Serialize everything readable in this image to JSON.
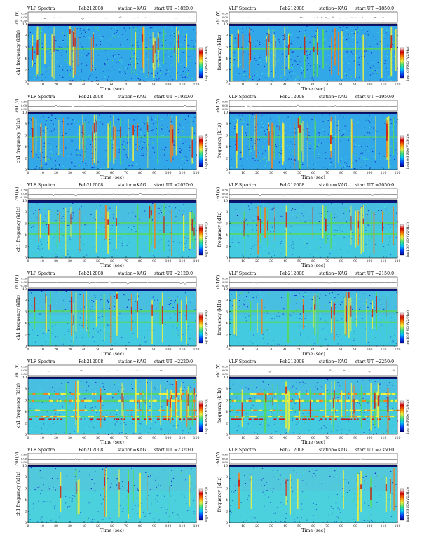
{
  "page": {
    "grid": {
      "rows": 6,
      "cols": 2
    }
  },
  "colors": {
    "background_blue": "#33a8e8",
    "dark_blue": "#1530c8",
    "cyan": "#40e0e0",
    "green": "#58d858",
    "yellow": "#f0f040",
    "orange": "#f08020",
    "red": "#c81818",
    "deep_navy": "#0a1478"
  },
  "colorbar": {
    "stops": [
      "#000080",
      "#0040ff",
      "#00c0ff",
      "#40e080",
      "#f0f040",
      "#ff8000",
      "#d00000",
      "#ffffff"
    ],
    "label": "log$_{10}$(PSD/(V$^2$/Hz))"
  },
  "chart_data": [
    {
      "type": "heatmap",
      "program": "VLF Spectra",
      "date": "Feb212008",
      "station": "station=KAG",
      "start": "start UT =1820:0",
      "ylabel_top": "ch1(V)",
      "ylabel_bottom": "ch1 frequency (kHz)",
      "xlabel": "Time (sec)",
      "xlim": [
        0,
        120
      ],
      "ylim": [
        0,
        10
      ],
      "xticks": [
        "0",
        "10",
        "20",
        "30",
        "40",
        "50",
        "60",
        "70",
        "80",
        "90",
        "100",
        "110",
        "120"
      ],
      "yticks": [
        "0",
        "2",
        "4",
        "6",
        "8",
        "10"
      ],
      "top_yticks": [
        "0.30",
        "0.00",
        "-0.30"
      ],
      "activity": "high"
    },
    {
      "type": "heatmap",
      "program": "VLF Spectra",
      "date": "Feb212008",
      "station": "station=KAG",
      "start": "start UT =1850:0",
      "ylabel_top": "ch1(V)",
      "ylabel_bottom": "frequency (kHz)",
      "xlabel": "Time (sec)",
      "xlim": [
        0,
        120
      ],
      "ylim": [
        0,
        10
      ],
      "xticks": [
        "0",
        "10",
        "20",
        "30",
        "40",
        "50",
        "60",
        "70",
        "80",
        "90",
        "100",
        "110",
        "120"
      ],
      "yticks": [
        "0",
        "2",
        "4",
        "6",
        "8",
        "10"
      ],
      "top_yticks": [
        "0.30",
        "0.00",
        "-0.30"
      ],
      "activity": "high"
    },
    {
      "type": "heatmap",
      "program": "VLF Spectra",
      "date": "Feb212008",
      "station": "station=KAG",
      "start": "start UT =1920:0",
      "ylabel_top": "ch1(V)",
      "ylabel_bottom": "ch1 frequency (kHz)",
      "xlabel": "Time (sec)",
      "xlim": [
        0,
        120
      ],
      "ylim": [
        0,
        10
      ],
      "xticks": [
        "0",
        "10",
        "20",
        "30",
        "40",
        "50",
        "60",
        "70",
        "80",
        "90",
        "100",
        "110",
        "120"
      ],
      "yticks": [
        "0",
        "2",
        "4",
        "6",
        "8",
        "10"
      ],
      "top_yticks": [
        "0.30",
        "0.00",
        "-0.30"
      ],
      "activity": "high"
    },
    {
      "type": "heatmap",
      "program": "VLF Spectra",
      "date": "Feb212008",
      "station": "station=KAG",
      "start": "start UT =1950:0",
      "ylabel_top": "ch1(V)",
      "ylabel_bottom": "frequency (kHz)",
      "xlabel": "Time (sec)",
      "xlim": [
        0,
        120
      ],
      "ylim": [
        0,
        10
      ],
      "xticks": [
        "0",
        "10",
        "20",
        "30",
        "40",
        "50",
        "60",
        "70",
        "80",
        "90",
        "100",
        "110",
        "120"
      ],
      "yticks": [
        "0",
        "2",
        "4",
        "6",
        "8",
        "10"
      ],
      "top_yticks": [
        "0.30",
        "0.00",
        "-0.30"
      ],
      "activity": "high"
    },
    {
      "type": "heatmap",
      "program": "VLF Spectra",
      "date": "Feb212008",
      "station": "station=KAG",
      "start": "start UT =2020:0",
      "ylabel_top": "ch1(V)",
      "ylabel_bottom": "ch1 frequency (kHz)",
      "xlabel": "Time (sec)",
      "xlim": [
        0,
        120
      ],
      "ylim": [
        0,
        10
      ],
      "xticks": [
        "0",
        "10",
        "20",
        "30",
        "40",
        "50",
        "60",
        "70",
        "80",
        "90",
        "100",
        "110",
        "120"
      ],
      "yticks": [
        "0",
        "2",
        "4",
        "6",
        "8",
        "10"
      ],
      "top_yticks": [
        "0.30",
        "0.00",
        "-0.30"
      ],
      "activity": "medium"
    },
    {
      "type": "heatmap",
      "program": "VLF Spectra",
      "date": "Feb212008",
      "station": "station=KAG",
      "start": "start UT =2050:0",
      "ylabel_top": "ch1(V)",
      "ylabel_bottom": "frequency (kHz)",
      "xlabel": "Time (sec)",
      "xlim": [
        0,
        120
      ],
      "ylim": [
        0,
        10
      ],
      "xticks": [
        "0",
        "10",
        "20",
        "30",
        "40",
        "50",
        "60",
        "70",
        "80",
        "90",
        "100",
        "110",
        "120"
      ],
      "yticks": [
        "0",
        "2",
        "4",
        "6",
        "8",
        "10"
      ],
      "top_yticks": [
        "0.30",
        "0.00",
        "-0.30"
      ],
      "activity": "medium"
    },
    {
      "type": "heatmap",
      "program": "VLF Spectra",
      "date": "Feb212008",
      "station": "station=KAG",
      "start": "start UT =2120:0",
      "ylabel_top": "ch1(V)",
      "ylabel_bottom": "ch1 frequency (kHz)",
      "xlabel": "Time (sec)",
      "xlim": [
        0,
        120
      ],
      "ylim": [
        0,
        10
      ],
      "xticks": [
        "0",
        "10",
        "20",
        "30",
        "40",
        "50",
        "60",
        "70",
        "80",
        "90",
        "100",
        "110",
        "120"
      ],
      "yticks": [
        "0",
        "2",
        "4",
        "6",
        "8",
        "10"
      ],
      "top_yticks": [
        "0.30",
        "0.00",
        "-0.30"
      ],
      "activity": "medium"
    },
    {
      "type": "heatmap",
      "program": "VLF Spectra",
      "date": "Feb212008",
      "station": "station=KAG",
      "start": "start UT =2150:0",
      "ylabel_top": "ch1(V)",
      "ylabel_bottom": "frequency (kHz)",
      "xlabel": "Time (sec)",
      "xlim": [
        0,
        120
      ],
      "ylim": [
        0,
        10
      ],
      "xticks": [
        "0",
        "10",
        "20",
        "30",
        "40",
        "50",
        "60",
        "70",
        "80",
        "90",
        "100",
        "110",
        "120"
      ],
      "yticks": [
        "0",
        "2",
        "4",
        "6",
        "8",
        "10"
      ],
      "top_yticks": [
        "0.30",
        "0.00",
        "-0.30"
      ],
      "activity": "medium"
    },
    {
      "type": "heatmap",
      "program": "VLF Spectra",
      "date": "Feb212008",
      "station": "station=KAG",
      "start": "start UT =2220:0",
      "ylabel_top": "ch1(V)",
      "ylabel_bottom": "ch1 frequency (kHz)",
      "xlabel": "Time (sec)",
      "xlim": [
        0,
        120
      ],
      "ylim": [
        0,
        10
      ],
      "xticks": [
        "0",
        "10",
        "20",
        "30",
        "40",
        "50",
        "60",
        "70",
        "80",
        "90",
        "100",
        "110",
        "120"
      ],
      "yticks": [
        "0",
        "2",
        "4",
        "6",
        "8",
        "10"
      ],
      "top_yticks": [
        "0.30",
        "0.00",
        "-0.30"
      ],
      "activity": "banded"
    },
    {
      "type": "heatmap",
      "program": "VLF Spectra",
      "date": "Feb212008",
      "station": "station=KAG",
      "start": "start UT =2250:0",
      "ylabel_top": "ch1(V)",
      "ylabel_bottom": "frequency (kHz)",
      "xlabel": "Time (sec)",
      "xlim": [
        0,
        120
      ],
      "ylim": [
        0,
        10
      ],
      "xticks": [
        "0",
        "10",
        "20",
        "30",
        "40",
        "50",
        "60",
        "70",
        "80",
        "90",
        "100",
        "110",
        "120"
      ],
      "yticks": [
        "0",
        "2",
        "4",
        "6",
        "8",
        "10"
      ],
      "top_yticks": [
        "0.30",
        "0.00",
        "-0.30"
      ],
      "activity": "banded"
    },
    {
      "type": "heatmap",
      "program": "VLF Spectra",
      "date": "Feb212008",
      "station": "station=KAG",
      "start": "start UT =2320:0",
      "ylabel_top": "ch1(V)",
      "ylabel_bottom": "ch1 frequency (kHz)",
      "xlabel": "Time (sec)",
      "xlim": [
        0,
        120
      ],
      "ylim": [
        0,
        10
      ],
      "xticks": [
        "0",
        "10",
        "20",
        "30",
        "40",
        "50",
        "60",
        "70",
        "80",
        "90",
        "100",
        "110",
        "120"
      ],
      "yticks": [
        "0",
        "2",
        "4",
        "6",
        "8",
        "10"
      ],
      "top_yticks": [
        "0.30",
        "0.00",
        "-0.30"
      ],
      "activity": "low"
    },
    {
      "type": "heatmap",
      "program": "VLF Spectra",
      "date": "Feb212008",
      "station": "station=KAG",
      "start": "start UT =2350:0",
      "ylabel_top": "ch1(V)",
      "ylabel_bottom": "frequency (kHz)",
      "xlabel": "Time (sec)",
      "xlim": [
        0,
        120
      ],
      "ylim": [
        0,
        10
      ],
      "xticks": [
        "0",
        "10",
        "20",
        "30",
        "40",
        "50",
        "60",
        "70",
        "80",
        "90",
        "100",
        "110",
        "120"
      ],
      "yticks": [
        "0",
        "2",
        "4",
        "6",
        "8",
        "10"
      ],
      "top_yticks": [
        "0.30",
        "0.00",
        "-0.30"
      ],
      "activity": "low"
    }
  ]
}
